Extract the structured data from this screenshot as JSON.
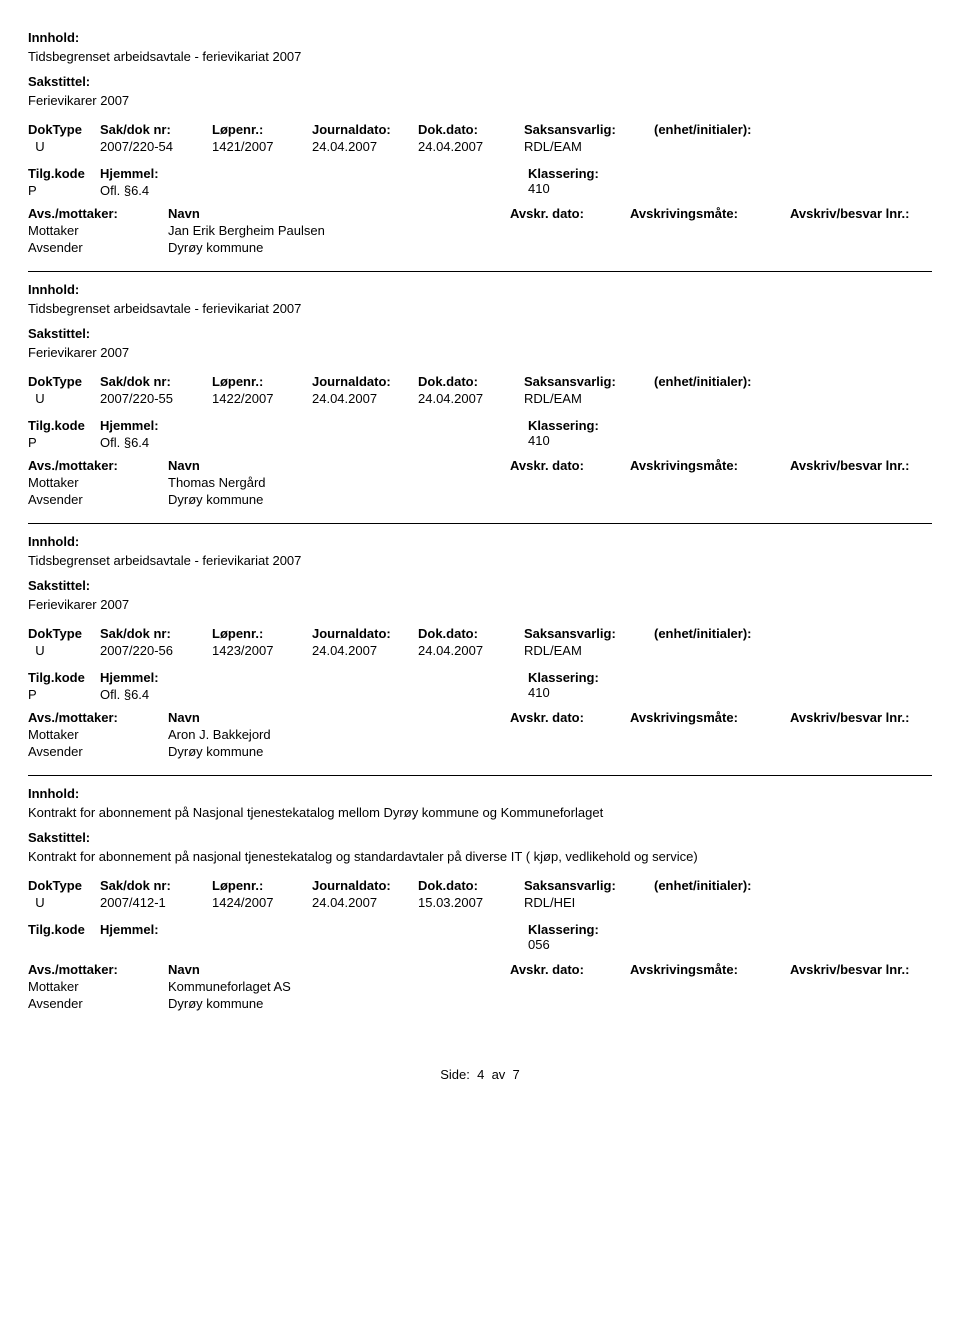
{
  "labels": {
    "innhold": "Innhold:",
    "sakstittel": "Sakstittel:",
    "doktype": "DokType",
    "sakdok": "Sak/dok nr:",
    "lopenr": "Løpenr.:",
    "journaldato": "Journaldato:",
    "dokdato": "Dok.dato:",
    "saksansvarlig": "Saksansvarlig:",
    "enhet": "(enhet/initialer):",
    "tilgkode": "Tilg.kode",
    "hjemmel": "Hjemmel:",
    "klassering": "Klassering:",
    "avsmottaker": "Avs./mottaker:",
    "navn": "Navn",
    "avskrdato": "Avskr. dato:",
    "avskrmate": "Avskrivingsmåte:",
    "avskrbesvar": "Avskriv/besvar lnr.:",
    "mottaker": "Mottaker",
    "avsender": "Avsender"
  },
  "footer": {
    "side": "Side:",
    "page": "4",
    "av": "av",
    "total": "7"
  },
  "records": [
    {
      "innhold": "Tidsbegrenset arbeidsavtale - ferievikariat 2007",
      "sakstittel": "Ferievikarer 2007",
      "doktype": "U",
      "sakdok": "2007/220-54",
      "lopenr": "1421/2007",
      "journaldato": "24.04.2007",
      "dokdato": "24.04.2007",
      "saksansvarlig": "RDL/EAM",
      "tilgkode": "P",
      "hjemmel": "Ofl. §6.4",
      "klassering": "410",
      "mottaker": "Jan Erik Bergheim Paulsen",
      "avsender": "Dyrøy kommune",
      "show_avskr_hdr_before_mottaker": true
    },
    {
      "innhold": "Tidsbegrenset arbeidsavtale - ferievikariat 2007",
      "sakstittel": "Ferievikarer 2007",
      "doktype": "U",
      "sakdok": "2007/220-55",
      "lopenr": "1422/2007",
      "journaldato": "24.04.2007",
      "dokdato": "24.04.2007",
      "saksansvarlig": "RDL/EAM",
      "tilgkode": "P",
      "hjemmel": "Ofl. §6.4",
      "klassering": "410",
      "mottaker": "Thomas Nergård",
      "avsender": "Dyrøy kommune",
      "show_avskr_hdr_before_mottaker": true
    },
    {
      "innhold": "Tidsbegrenset arbeidsavtale - ferievikariat 2007",
      "sakstittel": "Ferievikarer 2007",
      "doktype": "U",
      "sakdok": "2007/220-56",
      "lopenr": "1423/2007",
      "journaldato": "24.04.2007",
      "dokdato": "24.04.2007",
      "saksansvarlig": "RDL/EAM",
      "tilgkode": "P",
      "hjemmel": "Ofl. §6.4",
      "klassering": "410",
      "mottaker": "Aron J. Bakkejord",
      "avsender": "Dyrøy kommune",
      "show_avskr_hdr_before_mottaker": false
    },
    {
      "innhold": "Kontrakt for abonnement på Nasjonal tjenestekatalog mellom Dyrøy kommune og Kommuneforlaget",
      "sakstittel": "Kontrakt for abonnement på nasjonal tjenestekatalog og standardavtaler på diverse IT ( kjøp, vedlikehold og service)",
      "doktype": "U",
      "sakdok": "2007/412-1",
      "lopenr": "1424/2007",
      "journaldato": "24.04.2007",
      "dokdato": "15.03.2007",
      "saksansvarlig": "RDL/HEI",
      "tilgkode": "",
      "hjemmel": "",
      "klassering": "056",
      "mottaker": "Kommuneforlaget AS",
      "avsender": "Dyrøy kommune",
      "show_avskr_hdr_before_mottaker": false
    }
  ]
}
